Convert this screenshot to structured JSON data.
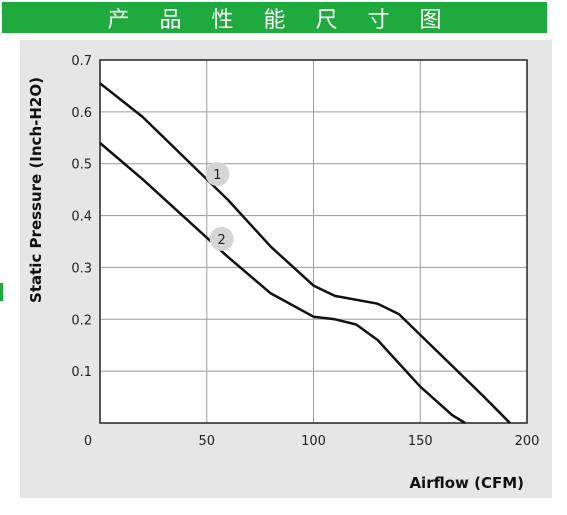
{
  "banner": {
    "title": "产品性能尺寸图",
    "color": "#1faa3d"
  },
  "chart_data": {
    "type": "line",
    "title": "",
    "xlabel": "Airflow (CFM)",
    "ylabel": "Static Pressure (Inch-H2O)",
    "xlim": [
      0,
      200
    ],
    "ylim": [
      0,
      0.7
    ],
    "xticks": [
      "0",
      "50",
      "100",
      "150",
      "200"
    ],
    "yticks": [
      "0.1",
      "0.2",
      "0.3",
      "0.4",
      "0.5",
      "0.6",
      "0.7"
    ],
    "grid": true,
    "series": [
      {
        "name": "1",
        "x": [
          0,
          20,
          40,
          60,
          80,
          100,
          110,
          130,
          140,
          160,
          180,
          192
        ],
        "y": [
          0.655,
          0.59,
          0.51,
          0.43,
          0.34,
          0.265,
          0.245,
          0.23,
          0.21,
          0.13,
          0.05,
          0.0
        ]
      },
      {
        "name": "2",
        "x": [
          0,
          20,
          40,
          60,
          80,
          100,
          110,
          120,
          130,
          150,
          165,
          171
        ],
        "y": [
          0.54,
          0.47,
          0.395,
          0.32,
          0.25,
          0.205,
          0.2,
          0.19,
          0.16,
          0.07,
          0.015,
          0.0
        ]
      }
    ],
    "labels": [
      {
        "text": "1",
        "x": 55,
        "y": 0.48
      },
      {
        "text": "2",
        "x": 57,
        "y": 0.355
      }
    ]
  }
}
